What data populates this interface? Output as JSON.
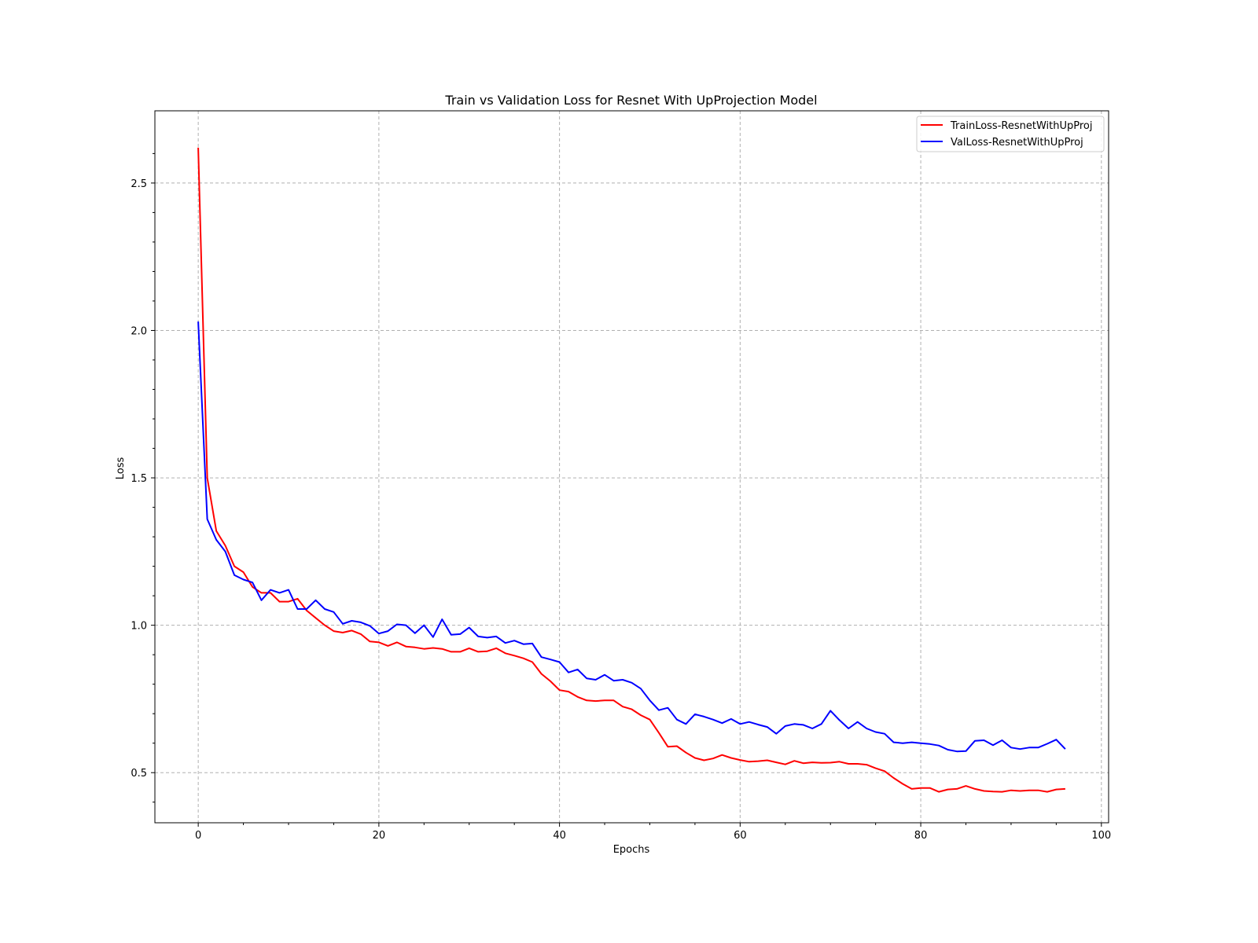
{
  "chart_data": {
    "type": "line",
    "title": "Train vs Validation Loss for Resnet With UpProjection Model",
    "xlabel": "Epochs",
    "ylabel": "Loss",
    "xlim": [
      -4.8,
      100.8
    ],
    "ylim": [
      0.33,
      2.745
    ],
    "xticks": [
      0,
      20,
      40,
      60,
      80,
      100
    ],
    "yticks": [
      0.5,
      1.0,
      1.5,
      2.0,
      2.5
    ],
    "xtick_labels": [
      "0",
      "20",
      "40",
      "60",
      "80",
      "100"
    ],
    "ytick_labels": [
      "0.5",
      "1.0",
      "1.5",
      "2.0",
      "2.5"
    ],
    "grid": true,
    "legend_position": "top-right",
    "series": [
      {
        "name": "TrainLoss-ResnetWithUpProj",
        "color": "#ff0000",
        "values": [
          2.62,
          1.5,
          1.32,
          1.27,
          1.2,
          1.18,
          1.13,
          1.11,
          1.11,
          1.08,
          1.08,
          1.09,
          1.05,
          1.025,
          1.0,
          0.98,
          0.975,
          0.982,
          0.97,
          0.945,
          0.942,
          0.93,
          0.942,
          0.928,
          0.925,
          0.92,
          0.923,
          0.92,
          0.91,
          0.91,
          0.922,
          0.91,
          0.912,
          0.922,
          0.905,
          0.897,
          0.888,
          0.875,
          0.835,
          0.81,
          0.78,
          0.775,
          0.757,
          0.745,
          0.743,
          0.745,
          0.745,
          0.724,
          0.715,
          0.695,
          0.68,
          0.635,
          0.588,
          0.59,
          0.568,
          0.55,
          0.542,
          0.548,
          0.56,
          0.55,
          0.543,
          0.537,
          0.539,
          0.542,
          0.535,
          0.528,
          0.54,
          0.532,
          0.535,
          0.533,
          0.534,
          0.537,
          0.53,
          0.53,
          0.527,
          0.515,
          0.505,
          0.482,
          0.462,
          0.445,
          0.448,
          0.448,
          0.435,
          0.443,
          0.445,
          0.455,
          0.445,
          0.438,
          0.436,
          0.435,
          0.44,
          0.438,
          0.44,
          0.44,
          0.435,
          0.443,
          0.445
        ]
      },
      {
        "name": "ValLoss-ResnetWithUpProj",
        "color": "#0000ff",
        "values": [
          2.03,
          1.36,
          1.29,
          1.25,
          1.17,
          1.155,
          1.145,
          1.085,
          1.12,
          1.11,
          1.12,
          1.055,
          1.055,
          1.085,
          1.055,
          1.045,
          1.005,
          1.015,
          1.01,
          0.998,
          0.972,
          0.98,
          1.003,
          1.0,
          0.973,
          1.0,
          0.96,
          1.02,
          0.968,
          0.97,
          0.992,
          0.962,
          0.958,
          0.962,
          0.94,
          0.948,
          0.936,
          0.938,
          0.892,
          0.884,
          0.875,
          0.84,
          0.85,
          0.82,
          0.815,
          0.832,
          0.812,
          0.815,
          0.805,
          0.785,
          0.745,
          0.712,
          0.72,
          0.68,
          0.665,
          0.698,
          0.69,
          0.68,
          0.668,
          0.682,
          0.665,
          0.672,
          0.663,
          0.655,
          0.632,
          0.658,
          0.665,
          0.662,
          0.65,
          0.665,
          0.71,
          0.678,
          0.65,
          0.672,
          0.65,
          0.638,
          0.632,
          0.603,
          0.6,
          0.603,
          0.6,
          0.597,
          0.592,
          0.578,
          0.572,
          0.573,
          0.608,
          0.61,
          0.593,
          0.61,
          0.585,
          0.58,
          0.585,
          0.585,
          0.598,
          0.612,
          0.58
        ]
      }
    ]
  }
}
